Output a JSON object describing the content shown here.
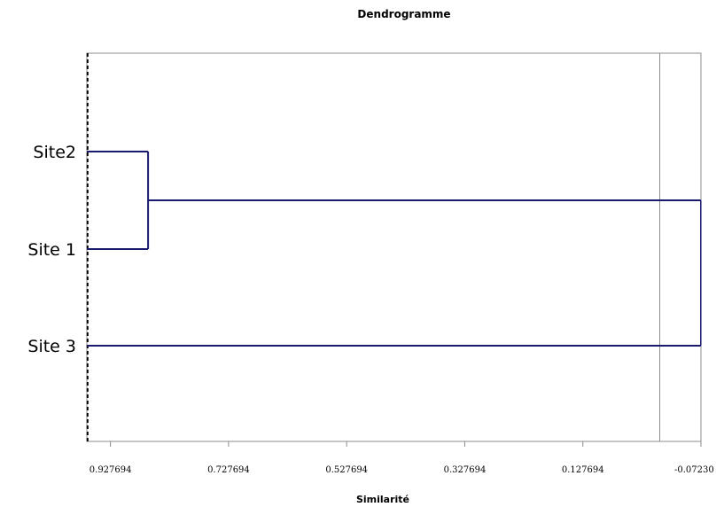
{
  "chart_data": {
    "type": "dendrogram",
    "title": "Dendrogramme",
    "xlabel": "Similarité",
    "ylabel": "",
    "x_axis_reversed": true,
    "xlim": [
      0.967694,
      -0.0723
    ],
    "x_ticks": [
      0.927694,
      0.727694,
      0.527694,
      0.327694,
      0.127694,
      -0.0723
    ],
    "x_tick_labels": [
      "0.927694",
      "0.727694",
      "0.527694",
      "0.327694",
      "0.127694",
      "-0.07230"
    ],
    "leaves": [
      "Site2",
      "Site 1",
      "Site 3"
    ],
    "merges": [
      {
        "members": [
          "Site2",
          "Site 1"
        ],
        "similarity": 0.864
      },
      {
        "members": [
          "Site2",
          "Site 1",
          "Site 3"
        ],
        "similarity": -0.072
      }
    ],
    "truncation_line": {
      "similarity": 0.9665,
      "style": "dashed"
    },
    "reference_line": {
      "similarity": -0.0025,
      "style": "solid"
    },
    "line_color": "#1a1a6e",
    "grid": false,
    "legend": "none"
  }
}
